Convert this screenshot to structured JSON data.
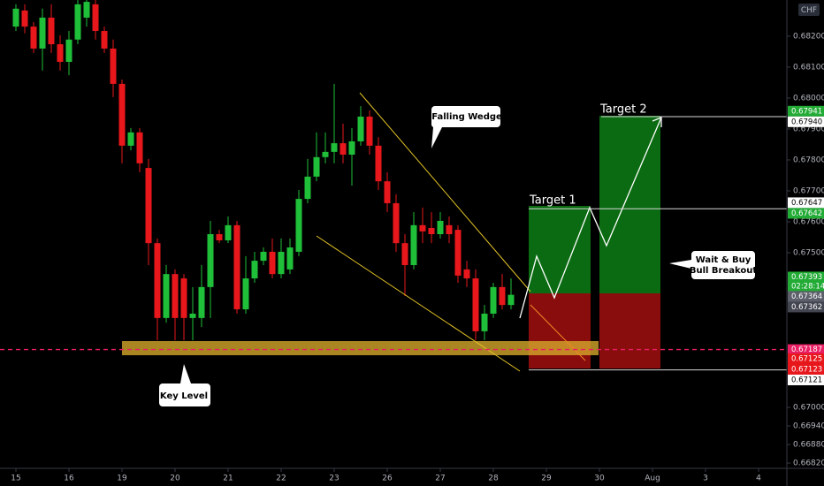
{
  "chart_data": {
    "type": "candlestick",
    "currency": "CHF",
    "xlim": [
      -1.8,
      87.2
    ],
    "xticks": [
      {
        "value": 0,
        "label": "15"
      },
      {
        "value": 6,
        "label": "16"
      },
      {
        "value": 12,
        "label": "19"
      },
      {
        "value": 18,
        "label": "20"
      },
      {
        "value": 24,
        "label": "21"
      },
      {
        "value": 30,
        "label": "22"
      },
      {
        "value": 36,
        "label": "23"
      },
      {
        "value": 42,
        "label": "26"
      },
      {
        "value": 48,
        "label": "27"
      },
      {
        "value": 54,
        "label": "28"
      },
      {
        "value": 60,
        "label": "29"
      },
      {
        "value": 66,
        "label": "30"
      },
      {
        "value": 72,
        "label": "Aug"
      },
      {
        "value": 78,
        "label": "3"
      },
      {
        "value": 84,
        "label": "4"
      }
    ],
    "ylim": [
      0.66803,
      0.68317
    ],
    "yticks": [
      {
        "value": 0.682,
        "label": "0.68200"
      },
      {
        "value": 0.681,
        "label": "0.68100"
      },
      {
        "value": 0.68,
        "label": "0.68000"
      },
      {
        "value": 0.679,
        "label": "0.67900"
      },
      {
        "value": 0.678,
        "label": "0.67800"
      },
      {
        "value": 0.677,
        "label": "0.67700"
      },
      {
        "value": 0.676,
        "label": "0.67600"
      },
      {
        "value": 0.675,
        "label": "0.67500"
      },
      {
        "value": 0.67,
        "label": "0.67000"
      },
      {
        "value": 0.6694,
        "label": "0.66940"
      },
      {
        "value": 0.6688,
        "label": "0.66880"
      },
      {
        "value": 0.6682,
        "label": "0.66820"
      }
    ],
    "up_color": "#1fbf3a",
    "down_color": "#e8171c",
    "series": {
      "open": [
        0.68231,
        0.68283,
        0.68231,
        0.6816,
        0.6826,
        0.68174,
        0.68117,
        0.68189,
        0.6826,
        0.68303,
        0.68217,
        0.6816,
        0.68046,
        0.67846,
        0.67889,
        0.67774,
        0.67531,
        0.67289,
        0.67431,
        0.67417,
        0.67289,
        0.67289,
        0.67389,
        0.6756,
        0.6754,
        0.67589,
        0.67317,
        0.67417,
        0.67474,
        0.67503,
        0.67431,
        0.67446,
        0.67503,
        0.67674,
        0.67746,
        0.67809,
        0.67826,
        0.67854,
        0.67817,
        0.6786,
        0.6794,
        0.67846,
        0.67731,
        0.6766,
        0.67531,
        0.6746,
        0.67589,
        0.6758,
        0.6756,
        0.67589,
        0.67574,
        0.67446,
        0.67417,
        0.67246,
        0.67303,
        0.67389,
        0.67331
      ],
      "high": [
        0.68303,
        0.68303,
        0.68246,
        0.68289,
        0.68303,
        0.68203,
        0.68217,
        0.68317,
        0.68317,
        0.68317,
        0.68231,
        0.68189,
        0.6806,
        0.67903,
        0.67903,
        0.67803,
        0.67546,
        0.6746,
        0.67446,
        0.67431,
        0.67389,
        0.6746,
        0.67603,
        0.67574,
        0.67617,
        0.67603,
        0.67489,
        0.67503,
        0.67517,
        0.67546,
        0.67546,
        0.67546,
        0.67703,
        0.67803,
        0.67889,
        0.67889,
        0.68046,
        0.67917,
        0.67903,
        0.67974,
        0.6796,
        0.67874,
        0.6776,
        0.67689,
        0.6756,
        0.67631,
        0.67646,
        0.67631,
        0.67631,
        0.67617,
        0.67589,
        0.67474,
        0.67446,
        0.67331,
        0.67403,
        0.67431,
        0.67417
      ],
      "low": [
        0.68217,
        0.68209,
        0.68146,
        0.68089,
        0.68146,
        0.68089,
        0.68074,
        0.68174,
        0.68231,
        0.68189,
        0.68146,
        0.68003,
        0.67789,
        0.67831,
        0.6776,
        0.6746,
        0.67217,
        0.67274,
        0.67217,
        0.67217,
        0.67217,
        0.6726,
        0.67289,
        0.67531,
        0.67531,
        0.67303,
        0.67303,
        0.67403,
        0.6746,
        0.67417,
        0.67417,
        0.67431,
        0.67489,
        0.6766,
        0.67731,
        0.67789,
        0.67789,
        0.67789,
        0.67717,
        0.67846,
        0.67817,
        0.67703,
        0.67631,
        0.67503,
        0.6736,
        0.67446,
        0.67531,
        0.67531,
        0.67546,
        0.67531,
        0.67403,
        0.67389,
        0.67217,
        0.67217,
        0.67289,
        0.67317,
        0.67317
      ],
      "close": [
        0.68289,
        0.68231,
        0.6816,
        0.6826,
        0.68174,
        0.68117,
        0.68189,
        0.68303,
        0.68311,
        0.68217,
        0.6816,
        0.68046,
        0.67846,
        0.67889,
        0.67789,
        0.67531,
        0.67289,
        0.67431,
        0.67289,
        0.67289,
        0.67303,
        0.67389,
        0.6756,
        0.6754,
        0.67589,
        0.67317,
        0.67417,
        0.67474,
        0.67503,
        0.67431,
        0.67503,
        0.67517,
        0.67674,
        0.67746,
        0.67809,
        0.67826,
        0.67854,
        0.67817,
        0.6786,
        0.6794,
        0.67846,
        0.67731,
        0.6766,
        0.67531,
        0.6746,
        0.67589,
        0.67569,
        0.6756,
        0.67603,
        0.6756,
        0.67426,
        0.67417,
        0.67246,
        0.67303,
        0.67389,
        0.67331,
        0.67364
      ]
    },
    "price_labels": [
      {
        "value": 0.67941,
        "label": "0.67941",
        "color": "#22ab35"
      },
      {
        "value": 0.6794,
        "label": "0.67940",
        "color": "#ffffff"
      },
      {
        "value": 0.67647,
        "label": "0.67647",
        "color": "#ffffff"
      },
      {
        "value": 0.67642,
        "label": "0.67642",
        "color": "#22ab35"
      },
      {
        "value": 0.67393,
        "label": "0.67393",
        "color": "#22ab35",
        "countdown": "02:28:14"
      },
      {
        "value": 0.67364,
        "label": "0.67364",
        "color": "#5d606b"
      },
      {
        "value": 0.67362,
        "label": "0.67362",
        "color": "#434651"
      },
      {
        "value": 0.67187,
        "label": "0.67187",
        "color": "#e91e63"
      },
      {
        "value": 0.67125,
        "label": "0.67125",
        "color": "#e8171c"
      },
      {
        "value": 0.67123,
        "label": "0.67123",
        "color": "#e8171c"
      },
      {
        "value": 0.67121,
        "label": "0.67121",
        "color": "#ffffff"
      }
    ],
    "annotations": {
      "falling_wedge": "Falling Wedge",
      "key_level": "Key Level",
      "target_1": "Target 1",
      "target_2": "Target 2",
      "breakout_note": [
        "Wait & Buy",
        "Bull Breakout"
      ]
    }
  }
}
